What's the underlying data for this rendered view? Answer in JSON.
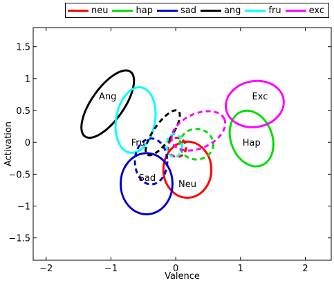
{
  "chart_data": {
    "type": "scatter",
    "xlabel": "Valence",
    "ylabel": "Activation",
    "xlim": [
      -2.2,
      2.4
    ],
    "ylim": [
      -1.85,
      1.8
    ],
    "xticks": [
      -2,
      -1,
      0,
      1,
      2
    ],
    "xtick_labels": [
      "−2",
      "−1",
      "0",
      "1",
      "2"
    ],
    "yticks": [
      1.5,
      1,
      0.5,
      0,
      -0.5,
      -1,
      -1.5
    ],
    "ytick_labels": [
      "1.5",
      "1",
      "0.5",
      "0",
      "−0.5",
      "−1",
      "−1.5"
    ],
    "grid": false,
    "legend_position": "top",
    "legend": [
      {
        "label": "neu",
        "color": "#ff0000"
      },
      {
        "label": "hap",
        "color": "#00dd00"
      },
      {
        "label": "sad",
        "color": "#0000cc"
      },
      {
        "label": "ang",
        "color": "#000000"
      },
      {
        "label": "fru",
        "color": "#00ffff"
      },
      {
        "label": "exc",
        "color": "#ff00ff"
      }
    ],
    "ellipses": [
      {
        "series": "neu",
        "style": "solid",
        "center": [
          0.18,
          -0.43
        ],
        "rx": 0.37,
        "ry": 0.44,
        "angle": 0
      },
      {
        "series": "hap",
        "style": "solid",
        "center": [
          1.17,
          0.06
        ],
        "rx": 0.32,
        "ry": 0.45,
        "angle": -20
      },
      {
        "series": "sad",
        "style": "solid",
        "center": [
          -0.45,
          -0.65
        ],
        "rx": 0.4,
        "ry": 0.48,
        "angle": 0
      },
      {
        "series": "ang",
        "style": "solid",
        "center": [
          -1.05,
          0.6
        ],
        "rx": 0.25,
        "ry": 0.62,
        "angle": 35
      },
      {
        "series": "fru",
        "style": "solid",
        "center": [
          -0.62,
          0.35
        ],
        "rx": 0.3,
        "ry": 0.52,
        "angle": 10
      },
      {
        "series": "exc",
        "style": "solid",
        "center": [
          1.22,
          0.6
        ],
        "rx": 0.45,
        "ry": 0.36,
        "angle": -10
      },
      {
        "series": "neu",
        "style": "dashed",
        "center": [
          0.02,
          -0.08
        ],
        "rx": 0.14,
        "ry": 0.15,
        "angle": 0
      },
      {
        "series": "hap",
        "style": "dashed",
        "center": [
          0.32,
          -0.03
        ],
        "rx": 0.26,
        "ry": 0.24,
        "angle": 0
      },
      {
        "series": "sad",
        "style": "dashed",
        "center": [
          -0.38,
          -0.3
        ],
        "rx": 0.25,
        "ry": 0.36,
        "angle": 0
      },
      {
        "series": "ang",
        "style": "dashed",
        "center": [
          -0.2,
          0.15
        ],
        "rx": 0.14,
        "ry": 0.42,
        "angle": 35
      },
      {
        "series": "fru",
        "style": "dashed",
        "center": [
          -0.02,
          -0.05
        ],
        "rx": 0.12,
        "ry": 0.18,
        "angle": 0
      },
      {
        "series": "exc",
        "style": "dashed",
        "center": [
          0.35,
          0.18
        ],
        "rx": 0.44,
        "ry": 0.27,
        "angle": -25
      }
    ],
    "annotations": [
      {
        "text": "Ang",
        "x": -1.05,
        "y": 0.73
      },
      {
        "text": "Fru",
        "x": -0.58,
        "y": 0.0
      },
      {
        "text": "Sad",
        "x": -0.44,
        "y": -0.55
      },
      {
        "text": "Neu",
        "x": 0.18,
        "y": -0.65
      },
      {
        "text": "Hap",
        "x": 1.17,
        "y": 0.0
      },
      {
        "text": "Exc",
        "x": 1.3,
        "y": 0.73
      }
    ]
  }
}
